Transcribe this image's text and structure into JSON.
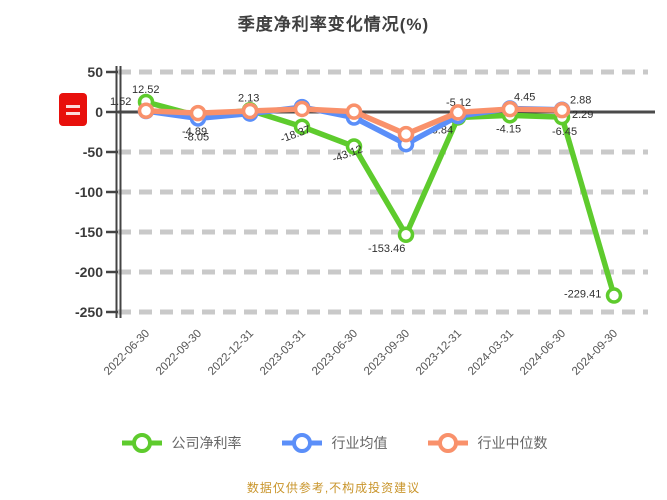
{
  "title": "季度净利率变化情况(%)",
  "footer": "数据仅供参考,不构成投资建议",
  "stamp": {
    "name": "red-logo-stamp",
    "color": "#e8100c"
  },
  "colors": {
    "company": "#5ecb2d",
    "industry_avg": "#5b8ff9",
    "industry_median": "#f9916b",
    "grid": "#c9c9c9",
    "zero_line": "#4a4a4a",
    "axis": "#444444",
    "tick_text": "#3a3a3a",
    "label_text": "#2f2f2f",
    "footer_text": "#c9952b"
  },
  "legend": {
    "items": [
      {
        "label": "公司净利率",
        "color": "#5ecb2d"
      },
      {
        "label": "行业均值",
        "color": "#5b8ff9"
      },
      {
        "label": "行业中位数",
        "color": "#f9916b"
      }
    ]
  },
  "chart_data": {
    "type": "line",
    "title": "季度净利率变化情况(%)",
    "xlabel": "",
    "ylabel": "",
    "ylim": [
      -250,
      50
    ],
    "yticks": [
      50,
      0,
      -50,
      -100,
      -150,
      -200,
      -250
    ],
    "grid": "dashed-horizontal",
    "legend_position": "bottom",
    "categories": [
      "2022-06-30",
      "2022-09-30",
      "2022-12-31",
      "2023-03-31",
      "2023-06-30",
      "2023-09-30",
      "2023-12-31",
      "2024-03-31",
      "2024-06-30",
      "2024-09-30"
    ],
    "series": [
      {
        "name": "公司净利率",
        "color": "#5ecb2d",
        "values": [
          12.52,
          -4.89,
          2.13,
          -18.37,
          -43.12,
          -153.46,
          -6.84,
          -4.15,
          -6.45,
          -229.41
        ],
        "label_points": [
          0,
          1,
          2,
          3,
          4,
          5,
          6,
          7,
          8,
          9
        ],
        "label_offsets": {
          "0": [
            -14,
            -9,
            0
          ],
          "1": [
            -16,
            19,
            0
          ],
          "2": [
            -12,
            -9,
            0
          ],
          "3": [
            -20,
            16,
            -20
          ],
          "4": [
            -20,
            16,
            -20
          ],
          "5": [
            -38,
            17,
            0
          ],
          "6": [
            -30,
            16,
            0
          ],
          "7": [
            -14,
            17,
            0
          ],
          "8": [
            -10,
            18,
            0
          ],
          "9": [
            -50,
            2,
            0
          ]
        }
      },
      {
        "name": "行业均值",
        "color": "#5b8ff9",
        "values": [
          1.21,
          -8.05,
          -1.96,
          6.13,
          -6.87,
          -40.26,
          -5.12,
          4.45,
          2.88
        ],
        "label_points": [
          1,
          6,
          7,
          8
        ],
        "label_offsets": {
          "1": [
            -14,
            22,
            0
          ],
          "6": [
            -12,
            -10,
            0
          ],
          "7": [
            4,
            -8,
            0
          ],
          "8": [
            8,
            -6,
            0
          ]
        }
      },
      {
        "name": "行业中位数",
        "color": "#f9916b",
        "values": [
          1.52,
          -1.39,
          1.23,
          3.78,
          0.45,
          -27.64,
          -0.53,
          3.62,
          2.29
        ],
        "label_points": [
          0,
          8
        ],
        "label_offsets": {
          "0": [
            -36,
            -6,
            0
          ],
          "8": [
            10,
            8,
            0
          ]
        }
      }
    ]
  }
}
